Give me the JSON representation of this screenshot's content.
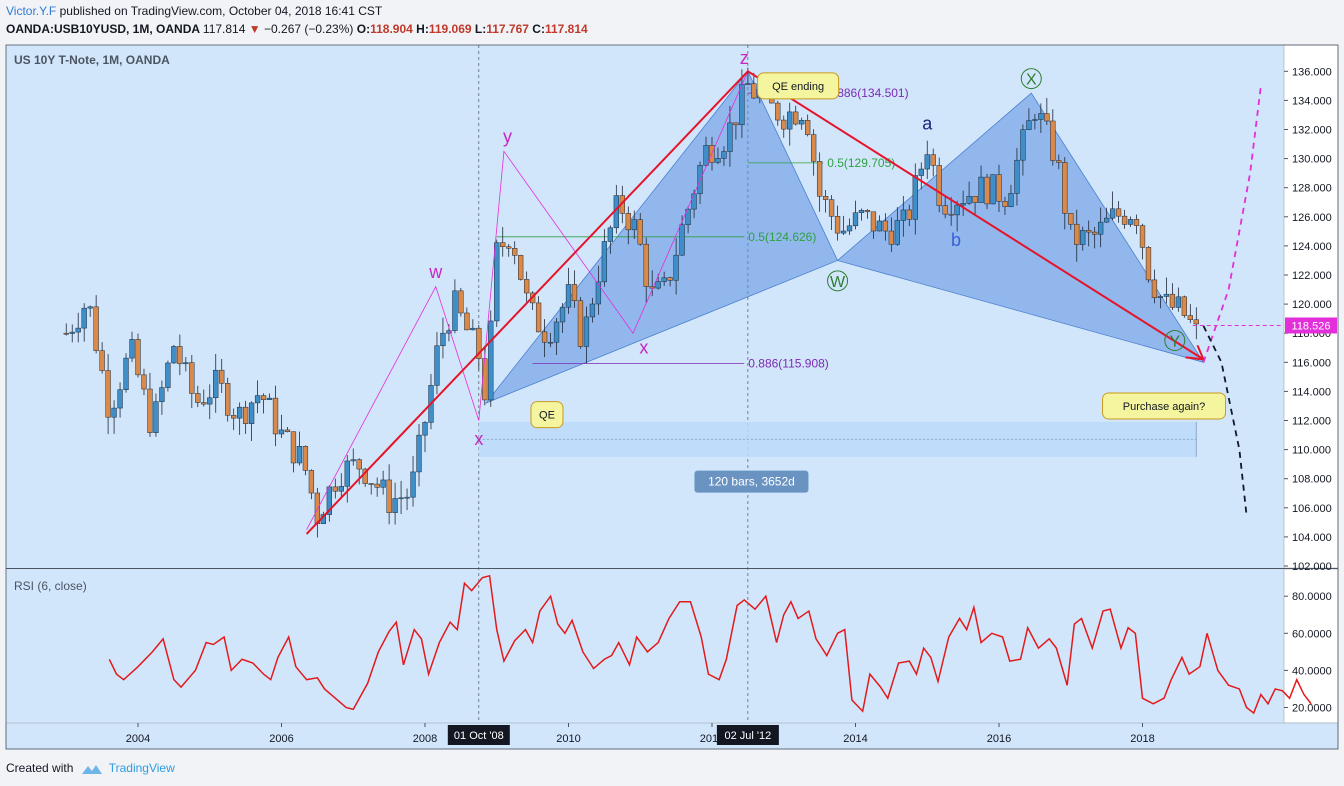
{
  "header": {
    "author": "Victor.Y.F",
    "published": "published on TradingView.com, October 04, 2018 16:41 CST",
    "symbol": "OANDA:USB10YUSD, 1M, OANDA",
    "last": "117.814",
    "change_arrow": "▼",
    "change": "−0.267 (−0.23%)",
    "o_label": "O:",
    "o": "118.904",
    "h_label": "H:",
    "h": "119.069",
    "l_label": "L:",
    "l": "117.767",
    "c_label": "C:",
    "c": "117.814"
  },
  "footer": {
    "created_with": "Created with",
    "brand": "TradingView"
  },
  "colors": {
    "up": "#3d8ec9",
    "down": "#d98a4a",
    "pane_bg": "#d2e6fb",
    "rsi": "#e31a1c",
    "pattern_fill": "#5b8fe0",
    "red_line": "#e6142a",
    "magenta": "#e32fd9"
  },
  "chart_data": {
    "type": "candlestick",
    "title": "US 10Y T-Note, 1M, OANDA",
    "price_axis": {
      "min": 102,
      "max": 137,
      "ticks": [
        "136.000",
        "134.000",
        "132.000",
        "130.000",
        "128.000",
        "126.000",
        "124.000",
        "122.000",
        "120.000",
        "118.000",
        "116.000",
        "114.000",
        "112.000",
        "110.000",
        "108.000",
        "106.000",
        "104.000",
        "102.000"
      ]
    },
    "time_axis": {
      "min": 2002.4,
      "max": 2019.9,
      "ticks": [
        "2004",
        "2006",
        "2008",
        "2010",
        "2012",
        "2014",
        "2016",
        "2018"
      ]
    },
    "last_price_label": "118.526",
    "last_price": 118.53,
    "cursor_labels": [
      "01 Oct '08",
      "02 Jul '12"
    ],
    "cursor_times": [
      2008.75,
      2012.5
    ],
    "price_path_knots": [
      [
        2003.0,
        118.0
      ],
      [
        2003.3,
        120.3
      ],
      [
        2003.6,
        112.8
      ],
      [
        2003.9,
        116.8
      ],
      [
        2004.2,
        111.5
      ],
      [
        2004.5,
        117.2
      ],
      [
        2004.8,
        113.2
      ],
      [
        2005.1,
        114.5
      ],
      [
        2005.4,
        112.3
      ],
      [
        2005.7,
        114.0
      ],
      [
        2006.0,
        111.0
      ],
      [
        2006.3,
        109.2
      ],
      [
        2006.5,
        105.5
      ],
      [
        2006.8,
        108.5
      ],
      [
        2007.1,
        109.0
      ],
      [
        2007.5,
        106.5
      ],
      [
        2007.8,
        107.0
      ],
      [
        2008.0,
        112.0
      ],
      [
        2008.2,
        117.5
      ],
      [
        2008.4,
        120.0
      ],
      [
        2008.6,
        118.0
      ],
      [
        2008.75,
        116.5
      ],
      [
        2008.85,
        113.5
      ],
      [
        2009.0,
        123.5
      ],
      [
        2009.2,
        125.0
      ],
      [
        2009.45,
        119.5
      ],
      [
        2009.7,
        118.0
      ],
      [
        2010.0,
        120.5
      ],
      [
        2010.2,
        117.5
      ],
      [
        2010.4,
        122.0
      ],
      [
        2010.7,
        127.0
      ],
      [
        2010.95,
        125.0
      ],
      [
        2011.15,
        120.5
      ],
      [
        2011.35,
        121.0
      ],
      [
        2011.6,
        125.5
      ],
      [
        2011.9,
        130.5
      ],
      [
        2012.2,
        131.5
      ],
      [
        2012.5,
        135.0
      ],
      [
        2012.8,
        133.5
      ],
      [
        2013.0,
        133.0
      ],
      [
        2013.3,
        133.5
      ],
      [
        2013.5,
        127.5
      ],
      [
        2013.8,
        125.0
      ],
      [
        2014.1,
        126.0
      ],
      [
        2014.4,
        125.0
      ],
      [
        2014.7,
        125.5
      ],
      [
        2015.0,
        131.0
      ],
      [
        2015.2,
        127.0
      ],
      [
        2015.5,
        127.5
      ],
      [
        2015.8,
        128.0
      ],
      [
        2016.1,
        127.5
      ],
      [
        2016.5,
        133.5
      ],
      [
        2016.8,
        130.0
      ],
      [
        2017.0,
        124.5
      ],
      [
        2017.3,
        124.5
      ],
      [
        2017.6,
        126.0
      ],
      [
        2017.9,
        126.5
      ],
      [
        2018.1,
        122.0
      ],
      [
        2018.3,
        120.0
      ],
      [
        2018.55,
        119.5
      ],
      [
        2018.75,
        118.0
      ]
    ],
    "red_lines": [
      [
        [
          2006.35,
          104.2
        ],
        [
          2012.5,
          136.0
        ]
      ],
      [
        [
          2012.5,
          136.0
        ],
        [
          2018.85,
          116.2
        ]
      ]
    ],
    "pattern_triangles": [
      [
        [
          2008.85,
          113.2
        ],
        [
          2012.5,
          136.0
        ],
        [
          2013.75,
          123.0
        ]
      ],
      [
        [
          2013.75,
          123.0
        ],
        [
          2016.45,
          134.5
        ],
        [
          2018.85,
          116.0
        ]
      ]
    ],
    "pattern_lines_magenta": [
      [
        [
          2006.35,
          104.5
        ],
        [
          2008.15,
          121.2
        ],
        [
          2008.75,
          112.0
        ],
        [
          2009.1,
          130.5
        ],
        [
          2010.9,
          118.0
        ],
        [
          2012.5,
          136.0
        ]
      ]
    ],
    "wave_labels": [
      {
        "text": "w",
        "t": 2008.15,
        "p": 121.8,
        "color": "#c628c0"
      },
      {
        "text": "y",
        "t": 2009.15,
        "p": 131.1,
        "color": "#c628c0"
      },
      {
        "text": "x",
        "t": 2008.75,
        "p": 110.3,
        "color": "#c628c0"
      },
      {
        "text": "x",
        "t": 2011.05,
        "p": 116.6,
        "color": "#c628c0"
      },
      {
        "text": "z",
        "t": 2012.45,
        "p": 136.5,
        "color": "#c628c0"
      },
      {
        "text": "a",
        "t": 2015.0,
        "p": 132.0,
        "color": "#1a237e"
      },
      {
        "text": "b",
        "t": 2015.4,
        "p": 124.0,
        "color": "#3b5fd6"
      }
    ],
    "circle_labels": [
      {
        "text": "W",
        "t": 2013.75,
        "p": 121.6
      },
      {
        "text": "X",
        "t": 2016.45,
        "p": 135.5
      },
      {
        "text": "Y",
        "t": 2018.45,
        "p": 117.5
      }
    ],
    "fib_levels": [
      {
        "label": "0.886(134.501)",
        "price": 134.501,
        "t0": 2012.5,
        "t1": 2013.55,
        "color": "#7b2ab3"
      },
      {
        "label": "0.5(129.705)",
        "price": 129.705,
        "t0": 2012.5,
        "t1": 2013.55,
        "color": "#2ea043"
      },
      {
        "label": "0.5(124.626)",
        "price": 124.626,
        "t0": 2009.0,
        "t1": 2012.45,
        "color": "#2ea043"
      },
      {
        "label": "0.886(115.908)",
        "price": 115.908,
        "t0": 2009.5,
        "t1": 2012.45,
        "color": "#7b2ab3"
      }
    ],
    "callouts": [
      {
        "text": "QE ending",
        "t": 2013.2,
        "p": 135.0
      },
      {
        "text": "QE",
        "t": 2009.7,
        "p": 112.4
      },
      {
        "text": "Purchase again?",
        "t": 2018.3,
        "p": 113.0
      }
    ],
    "range_box": {
      "t0": 2008.75,
      "t1": 2018.75,
      "p0": 109.5,
      "p1": 111.9,
      "label": "120 bars, 3652d",
      "label_t": 2012.55,
      "label_p": 107.8
    },
    "projection_up": [
      [
        2018.85,
        116.0
      ],
      [
        2019.2,
        121.0
      ],
      [
        2019.5,
        129.0
      ],
      [
        2019.65,
        135.0
      ]
    ],
    "projection_down": [
      [
        2018.85,
        118.5
      ],
      [
        2019.1,
        116.0
      ],
      [
        2019.35,
        110.0
      ],
      [
        2019.45,
        105.5
      ]
    ],
    "rsi": {
      "label": "RSI (6, close)",
      "ticks": [
        "80.0000",
        "60.0000",
        "40.0000",
        "20.0000"
      ],
      "min": 10,
      "max": 95,
      "values": [
        [
          2003.6,
          46
        ],
        [
          2003.7,
          38
        ],
        [
          2003.8,
          35
        ],
        [
          2004.0,
          42
        ],
        [
          2004.2,
          50
        ],
        [
          2004.35,
          57
        ],
        [
          2004.5,
          35
        ],
        [
          2004.6,
          31
        ],
        [
          2004.8,
          40
        ],
        [
          2004.95,
          55
        ],
        [
          2005.05,
          54
        ],
        [
          2005.2,
          58
        ],
        [
          2005.3,
          40
        ],
        [
          2005.45,
          46
        ],
        [
          2005.6,
          44
        ],
        [
          2005.75,
          38
        ],
        [
          2005.85,
          35
        ],
        [
          2005.95,
          47
        ],
        [
          2006.1,
          58
        ],
        [
          2006.2,
          42
        ],
        [
          2006.35,
          35
        ],
        [
          2006.5,
          36
        ],
        [
          2006.6,
          30
        ],
        [
          2006.75,
          25
        ],
        [
          2006.9,
          20
        ],
        [
          2007.0,
          19
        ],
        [
          2007.2,
          33
        ],
        [
          2007.35,
          50
        ],
        [
          2007.5,
          61
        ],
        [
          2007.6,
          66
        ],
        [
          2007.7,
          43
        ],
        [
          2007.85,
          62
        ],
        [
          2007.95,
          57
        ],
        [
          2008.05,
          38
        ],
        [
          2008.2,
          55
        ],
        [
          2008.35,
          66
        ],
        [
          2008.45,
          62
        ],
        [
          2008.55,
          87
        ],
        [
          2008.65,
          83
        ],
        [
          2008.8,
          90
        ],
        [
          2008.9,
          91
        ],
        [
          2009.0,
          62
        ],
        [
          2009.1,
          45
        ],
        [
          2009.25,
          56
        ],
        [
          2009.4,
          62
        ],
        [
          2009.5,
          55
        ],
        [
          2009.6,
          72
        ],
        [
          2009.75,
          80
        ],
        [
          2009.85,
          65
        ],
        [
          2009.95,
          60
        ],
        [
          2010.05,
          67
        ],
        [
          2010.2,
          50
        ],
        [
          2010.35,
          41
        ],
        [
          2010.5,
          46
        ],
        [
          2010.6,
          48
        ],
        [
          2010.7,
          55
        ],
        [
          2010.85,
          43
        ],
        [
          2010.95,
          58
        ],
        [
          2011.1,
          50
        ],
        [
          2011.25,
          55
        ],
        [
          2011.4,
          68
        ],
        [
          2011.55,
          77
        ],
        [
          2011.7,
          77
        ],
        [
          2011.85,
          58
        ],
        [
          2011.95,
          38
        ],
        [
          2012.1,
          35
        ],
        [
          2012.2,
          46
        ],
        [
          2012.35,
          75
        ],
        [
          2012.45,
          78
        ],
        [
          2012.6,
          73
        ],
        [
          2012.75,
          80
        ],
        [
          2012.9,
          55
        ],
        [
          2013.0,
          70
        ],
        [
          2013.1,
          77
        ],
        [
          2013.2,
          68
        ],
        [
          2013.35,
          72
        ],
        [
          2013.45,
          57
        ],
        [
          2013.6,
          48
        ],
        [
          2013.75,
          60
        ],
        [
          2013.85,
          62
        ],
        [
          2013.95,
          24
        ],
        [
          2014.1,
          18
        ],
        [
          2014.2,
          38
        ],
        [
          2014.35,
          31
        ],
        [
          2014.45,
          25
        ],
        [
          2014.6,
          44
        ],
        [
          2014.75,
          45
        ],
        [
          2014.85,
          38
        ],
        [
          2014.95,
          52
        ],
        [
          2015.05,
          47
        ],
        [
          2015.15,
          34
        ],
        [
          2015.3,
          58
        ],
        [
          2015.45,
          68
        ],
        [
          2015.55,
          62
        ],
        [
          2015.65,
          74
        ],
        [
          2015.75,
          55
        ],
        [
          2015.9,
          60
        ],
        [
          2016.05,
          58
        ],
        [
          2016.15,
          45
        ],
        [
          2016.3,
          46
        ],
        [
          2016.4,
          63
        ],
        [
          2016.55,
          52
        ],
        [
          2016.7,
          57
        ],
        [
          2016.8,
          52
        ],
        [
          2016.95,
          32
        ],
        [
          2017.05,
          65
        ],
        [
          2017.15,
          68
        ],
        [
          2017.3,
          52
        ],
        [
          2017.45,
          72
        ],
        [
          2017.55,
          73
        ],
        [
          2017.7,
          52
        ],
        [
          2017.8,
          63
        ],
        [
          2017.9,
          60
        ],
        [
          2018.0,
          25
        ],
        [
          2018.15,
          22
        ],
        [
          2018.3,
          25
        ],
        [
          2018.4,
          35
        ],
        [
          2018.55,
          47
        ],
        [
          2018.65,
          38
        ],
        [
          2018.8,
          42
        ],
        [
          2018.9,
          60
        ],
        [
          2019.05,
          40
        ],
        [
          2019.2,
          32
        ],
        [
          2019.35,
          30
        ],
        [
          2019.45,
          20
        ],
        [
          2019.55,
          17
        ],
        [
          2019.65,
          27
        ],
        [
          2019.75,
          22
        ],
        [
          2019.85,
          30
        ],
        [
          2019.95,
          29
        ],
        [
          2020.05,
          25
        ],
        [
          2020.15,
          35
        ],
        [
          2020.25,
          27
        ],
        [
          2020.35,
          22
        ]
      ]
    }
  }
}
